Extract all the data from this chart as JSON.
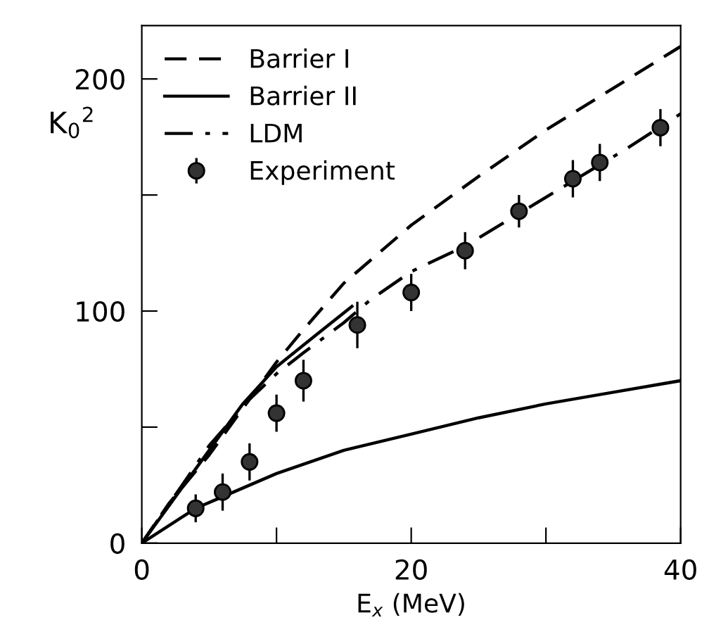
{
  "chart_data": {
    "type": "line",
    "xlabel": "E$_{x}$ (MeV)",
    "ylabel": "K$_{0}$$^{2}$",
    "xlim": [
      0,
      40
    ],
    "ylim": [
      0,
      223
    ],
    "xticks": [
      0,
      {
        "value": 10,
        "label": null
      },
      20,
      {
        "value": 30,
        "label": null
      },
      40
    ],
    "yticks": [
      0,
      {
        "value": 50,
        "label": null
      },
      100,
      {
        "value": 150,
        "label": null
      },
      200
    ],
    "grid": false,
    "legend": "top left",
    "marker": "none",
    "series": [
      {
        "name": "Barrier I",
        "color": "#000000",
        "line_style": "dashed",
        "x": [
          0,
          2,
          5,
          8,
          10,
          12,
          15,
          20,
          25,
          30,
          35,
          40
        ],
        "values": [
          0,
          17,
          38,
          62,
          78,
          92,
          112,
          137,
          158,
          178,
          196,
          214
        ]
      },
      {
        "name": "Barrier II",
        "color": "#000000",
        "line_style": "solid",
        "x": [
          0,
          4,
          6,
          10,
          15,
          20,
          25,
          30,
          35,
          40
        ],
        "values": [
          0,
          15,
          20,
          30,
          40,
          47,
          54,
          60,
          65,
          70
        ]
      },
      {
        "color": "#000000",
        "line_style": "solid",
        "x": [
          0,
          3,
          5,
          7.5,
          10,
          13,
          15.6
        ],
        "values": [
          0,
          24,
          40,
          60,
          76,
          90,
          102
        ]
      },
      {
        "name": "LDM",
        "color": "#000000",
        "line_style": "dashdot",
        "x": [
          0,
          3,
          5,
          8,
          10,
          12,
          15,
          17,
          20,
          24,
          28,
          32,
          36,
          40
        ],
        "values": [
          0,
          25,
          42,
          62,
          73,
          82,
          95,
          105,
          117,
          128,
          142,
          156,
          170,
          185
        ]
      },
      {
        "name": "Experiment",
        "type": "scatter",
        "color": "#333333",
        "marker": "circle",
        "x": [
          4,
          6,
          8,
          10,
          12,
          16,
          20,
          24,
          28,
          32,
          34,
          38.5
        ],
        "values": [
          15,
          22,
          35,
          56,
          70,
          94,
          108,
          126,
          143,
          157,
          164,
          179
        ],
        "errors": [
          6,
          8,
          8,
          8,
          9,
          10,
          8,
          8,
          7,
          8,
          8,
          8
        ]
      }
    ]
  }
}
